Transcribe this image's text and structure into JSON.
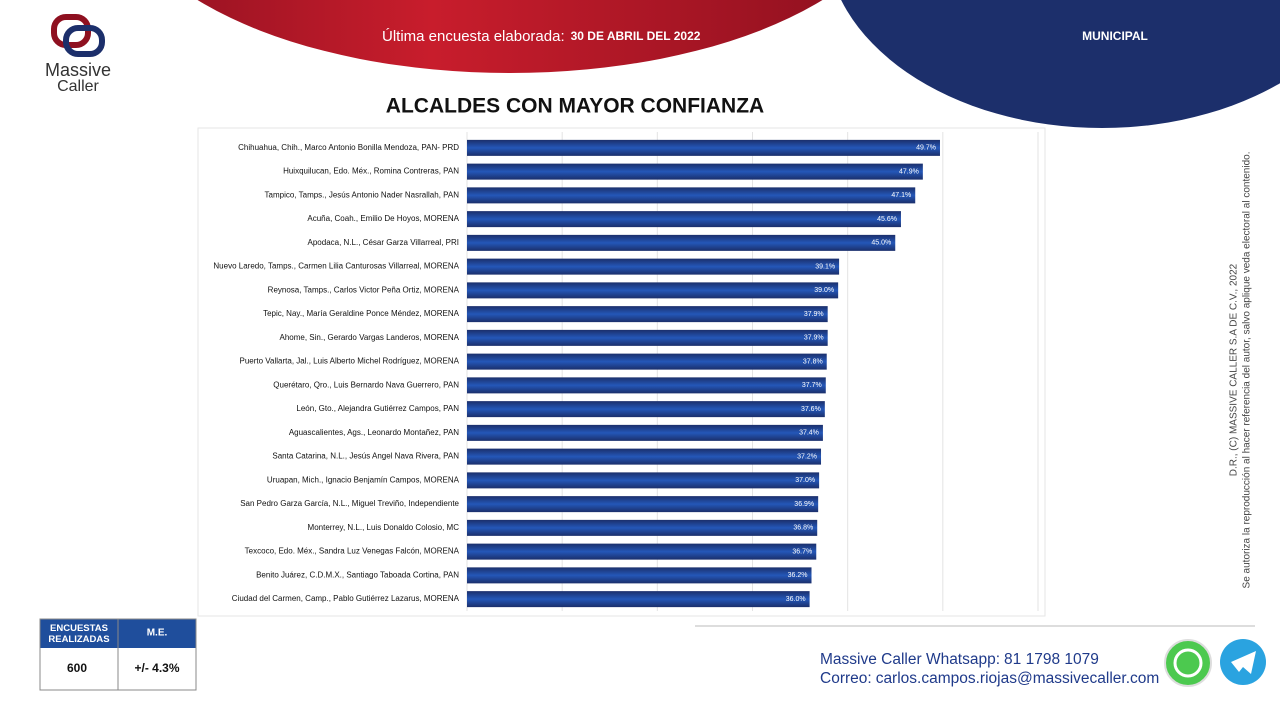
{
  "header": {
    "lead": "Última encuesta elaborada:",
    "date": "30 DE ABRIL DEL 2022",
    "section": "MUNICIPAL"
  },
  "logo": {
    "line1": "Massive",
    "line2": "Caller"
  },
  "chart_data": {
    "type": "bar",
    "orientation": "horizontal",
    "title": "ALCALDES CON MAYOR CONFIANZA",
    "categories": [
      "Chihuahua, Chih., Marco Antonio Bonilla Mendoza, PAN- PRD",
      "Huixquilucan, Edo. Méx., Romina Contreras, PAN",
      "Tampico, Tamps., Jesús Antonio Nader Nasrallah, PAN",
      "Acuña, Coah., Emilio De Hoyos, MORENA",
      "Apodaca, N.L., César Garza Villarreal, PRI",
      "Nuevo Laredo, Tamps., Carmen Lilia Canturosas Villarreal, MORENA",
      "Reynosa, Tamps., Carlos Victor Peña Ortiz, MORENA",
      "Tepic, Nay., María Geraldine Ponce Méndez, MORENA",
      "Ahome, Sin., Gerardo Vargas Landeros, MORENA",
      "Puerto Vallarta, Jal., Luis Alberto Michel Rodríguez, MORENA",
      "Querétaro, Qro., Luis Bernardo Nava Guerrero, PAN",
      "León, Gto., Alejandra Gutiérrez Campos, PAN",
      "Aguascalientes, Ags., Leonardo Montañez, PAN",
      "Santa Catarina, N.L., Jesús Angel Nava Rivera, PAN",
      "Uruapan, Mich., Ignacio Benjamín Campos, MORENA",
      "San Pedro Garza García, N.L., Miguel Treviño, Independiente",
      "Monterrey, N.L., Luis Donaldo Colosio, MC",
      "Texcoco, Edo. Méx., Sandra Luz Venegas Falcón, MORENA",
      "Benito Juárez, C.D.M.X., Santiago Taboada Cortina, PAN",
      "Ciudad del Carmen, Camp., Pablo Gutiérrez Lazarus, MORENA"
    ],
    "values": [
      49.7,
      47.9,
      47.1,
      45.6,
      45.0,
      39.1,
      39.0,
      37.9,
      37.9,
      37.8,
      37.7,
      37.6,
      37.4,
      37.2,
      37.0,
      36.9,
      36.8,
      36.7,
      36.2,
      36.0
    ],
    "value_labels": [
      "49.7%",
      "47.9%",
      "47.1%",
      "45.6%",
      "45.0%",
      "39.1%",
      "39.0%",
      "37.9%",
      "37.9%",
      "37.8%",
      "37.7%",
      "37.6%",
      "37.4%",
      "37.2%",
      "37.0%",
      "36.9%",
      "36.8%",
      "36.7%",
      "36.2%",
      "36.0%"
    ],
    "color": "#1b2f6b",
    "xlim": [
      0,
      60
    ],
    "xticks": [
      0,
      10,
      20,
      30,
      40,
      50,
      60
    ],
    "grid": true
  },
  "table": {
    "headers": [
      "ENCUESTAS REALIZADAS",
      "M.E."
    ],
    "rows": [
      [
        "600",
        "+/- 4.3%"
      ]
    ]
  },
  "contact": {
    "whatsapp_label": "Massive Caller Whatsapp:",
    "whatsapp": "81 1798 1079",
    "mail_label": "Correo:",
    "mail": "carlos.campos.riojas@massivecaller.com"
  },
  "notice": [
    "D.R., (C) MASSIVE CALLER S.A DE C.V., 2022",
    "Se autoriza la reproducción al hacer referencia del autor, salvo aplique veda electoral al contenido."
  ]
}
